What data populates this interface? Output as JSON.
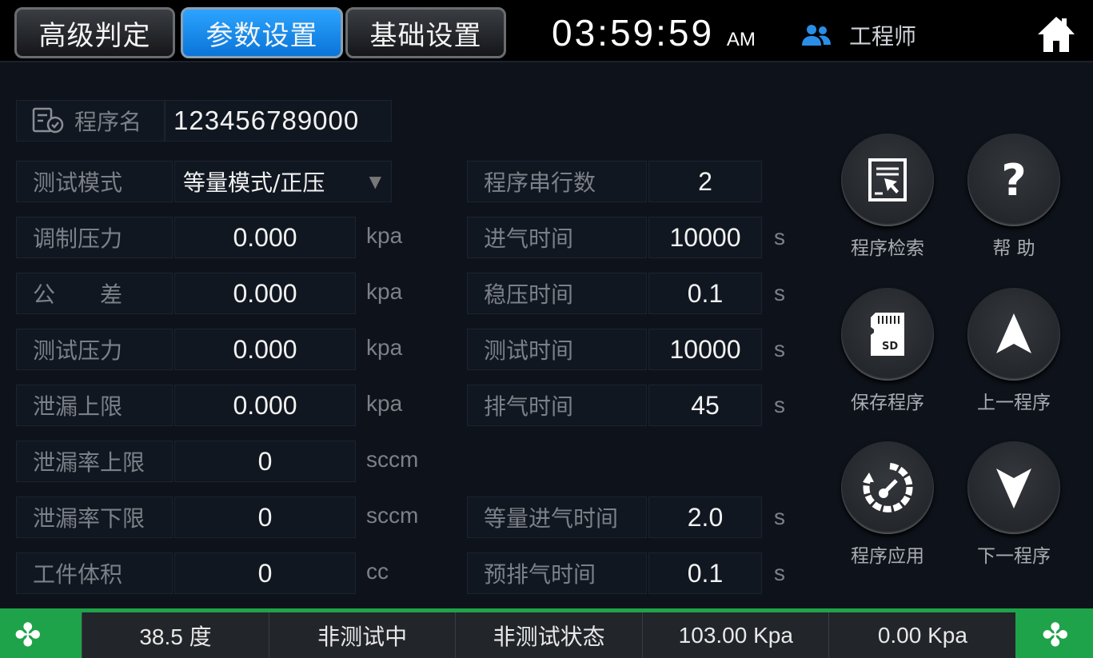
{
  "header": {
    "tabs": [
      {
        "label": "高级判定",
        "active": false
      },
      {
        "label": "参数设置",
        "active": true
      },
      {
        "label": "基础设置",
        "active": false
      }
    ],
    "time": "03:59:59",
    "ampm": "AM",
    "user": "工程师",
    "user_icon": "users-icon",
    "home_icon": "home-icon"
  },
  "program": {
    "label": "程序名",
    "value": "123456789000",
    "icon": "document-check-icon"
  },
  "mode": {
    "label": "测试模式",
    "value": "等量模式/正压"
  },
  "left_fields": [
    {
      "label": "调制压力",
      "value": "0.000",
      "unit": "kpa"
    },
    {
      "label": "公　　差",
      "value": "0.000",
      "unit": "kpa"
    },
    {
      "label": "测试压力",
      "value": "0.000",
      "unit": "kpa"
    },
    {
      "label": "泄漏上限",
      "value": "0.000",
      "unit": "kpa"
    },
    {
      "label": "泄漏率上限",
      "value": "0",
      "unit": "sccm"
    },
    {
      "label": "泄漏率下限",
      "value": "0",
      "unit": "sccm"
    },
    {
      "label": "工件体积",
      "value": "0",
      "unit": "cc"
    }
  ],
  "right_fields": [
    {
      "label": "程序串行数",
      "value": "2",
      "unit": ""
    },
    {
      "label": "进气时间",
      "value": "10000",
      "unit": "s"
    },
    {
      "label": "稳压时间",
      "value": "0.1",
      "unit": "s"
    },
    {
      "label": "测试时间",
      "value": "10000",
      "unit": "s"
    },
    {
      "label": "排气时间",
      "value": "45",
      "unit": "s"
    },
    null,
    {
      "label": "等量进气时间",
      "value": "2.0",
      "unit": "s"
    },
    {
      "label": "预排气时间",
      "value": "0.1",
      "unit": "s"
    }
  ],
  "buttons": [
    {
      "label": "程序检索",
      "icon": "program-search-icon"
    },
    {
      "label": "帮 助",
      "icon": "help-icon"
    },
    {
      "label": "保存程序",
      "icon": "sd-card-icon"
    },
    {
      "label": "上一程序",
      "icon": "arrow-up-icon"
    },
    {
      "label": "程序应用",
      "icon": "apply-gauge-icon"
    },
    {
      "label": "下一程序",
      "icon": "arrow-down-icon"
    }
  ],
  "status": [
    "38.5 度",
    "非测试中",
    "非测试状态",
    "103.00 Kpa",
    "0.00 Kpa"
  ],
  "colors": {
    "accent": "#1a8cf0",
    "status_bar": "#1fa34a",
    "background": "#0e131b"
  }
}
